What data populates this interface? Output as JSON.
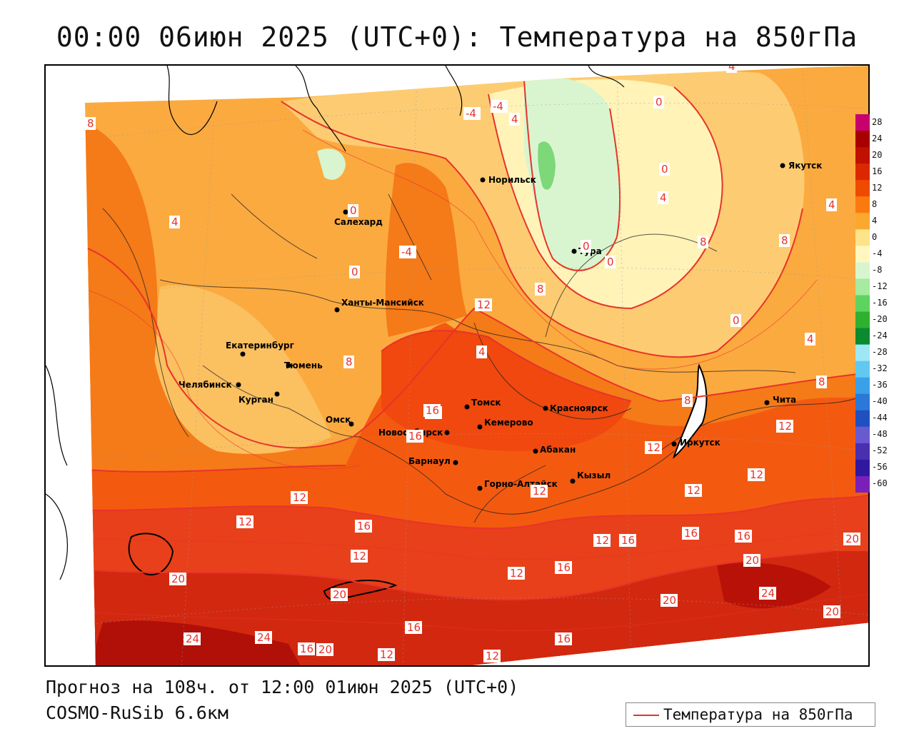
{
  "title": "00:00 06июн 2025 (UTC+0): Температура на 850гПа",
  "footer": {
    "forecast": "Прогноз на 108ч. от 12:00 01июн 2025 (UTC+0)",
    "model": "COSMO-RuSib 6.6км"
  },
  "legend": {
    "label": "Температура на 850гПа",
    "line_color": "#e8332a"
  },
  "colorbar": {
    "labels": [
      "28",
      "24",
      "20",
      "16",
      "12",
      "8",
      "4",
      "0",
      "-4",
      "-8",
      "-12",
      "-16",
      "-20",
      "-24",
      "-28",
      "-32",
      "-36",
      "-40",
      "-44",
      "-48",
      "-52",
      "-56",
      "-60"
    ],
    "colors": [
      "#c8006e",
      "#a80000",
      "#c01000",
      "#dc2800",
      "#f04a00",
      "#fa7a10",
      "#fba830",
      "#fde48a",
      "#fff6c0",
      "#d8f5d0",
      "#a6eba0",
      "#5fd35f",
      "#2fb02f",
      "#0b8a30",
      "#9ee8f5",
      "#62c8f0",
      "#3aa0e8",
      "#2a78d8",
      "#2050c0",
      "#6a5ad0",
      "#4a30b0",
      "#3018a0",
      "#7a20b8"
    ]
  },
  "cities": [
    {
      "name": "Якутск"
    },
    {
      "name": "Норильск"
    },
    {
      "name": "Салехард"
    },
    {
      "name": "Тура"
    },
    {
      "name": "Ханты-Мансийск"
    },
    {
      "name": "Екатеринбург"
    },
    {
      "name": "Тюмень"
    },
    {
      "name": "Челябинск"
    },
    {
      "name": "Курган"
    },
    {
      "name": "Омск"
    },
    {
      "name": "Томск"
    },
    {
      "name": "Красноярск"
    },
    {
      "name": "Новосибирск"
    },
    {
      "name": "Кемерово"
    },
    {
      "name": "Абакан"
    },
    {
      "name": "Барнаул"
    },
    {
      "name": "Горно-Алтайск"
    },
    {
      "name": "Кызыл"
    },
    {
      "name": "Иркутск"
    },
    {
      "name": "Чита"
    }
  ],
  "isotherm_labels": [
    "8",
    "4",
    "0",
    "-4",
    "-4",
    "4",
    "0",
    "4",
    "4",
    "0",
    "0",
    "8",
    "8",
    "4",
    "0",
    "-4",
    "0",
    "8",
    "12",
    "8",
    "0",
    "4",
    "4",
    "8",
    "12",
    "8",
    "12",
    "12",
    "12",
    "12",
    "12",
    "12",
    "12",
    "12",
    "16",
    "16",
    "12",
    "16",
    "16",
    "12",
    "16",
    "16",
    "16",
    "20",
    "20",
    "20",
    "24",
    "16",
    "20",
    "20",
    "24",
    "24",
    "16",
    "20",
    "16",
    "12",
    "12",
    "20"
  ]
}
